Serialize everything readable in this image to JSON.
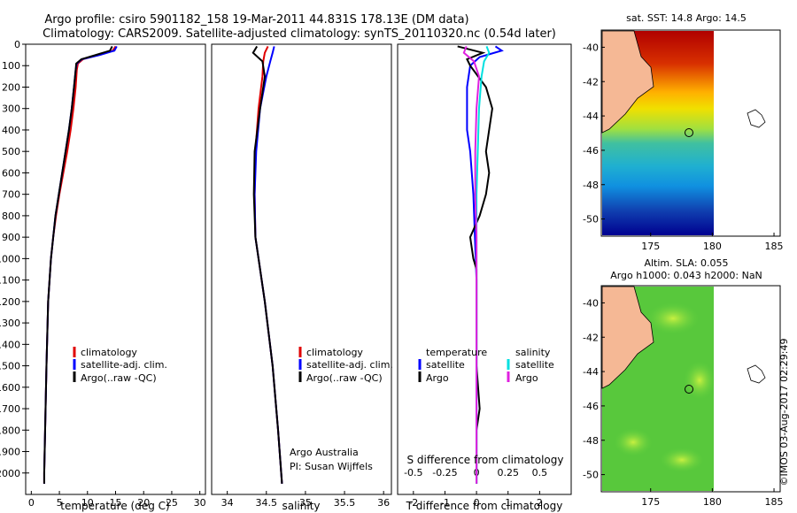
{
  "header": {
    "title_line1": "Argo profile: csiro 5901182_158 19-Mar-2011 44.831S 178.13E (DM data)",
    "title_line2": "Climatology: CARS2009. Satellite-adjusted climatology: synTS_20110320.nc (0.54d later)"
  },
  "footer": {
    "watermark": "©IMOS 03-Aug-2017 02:29:49",
    "org": "Argo Australia",
    "pi": "PI: Susan Wijffels"
  },
  "colors": {
    "climatology": "#e00000",
    "satellite": "#0000ff",
    "argo": "#000000",
    "salinity_satellite": "#00e0e0",
    "salinity_argo": "#e020e0",
    "land": "#f5b895"
  },
  "chart_data": [
    {
      "type": "line",
      "xlabel": "temperature (deg C)",
      "ylabel": "",
      "xlim": [
        -1,
        31
      ],
      "ylim": [
        2100,
        0
      ],
      "x_ticks": [
        0,
        5,
        10,
        15,
        20,
        25,
        30
      ],
      "y_ticks": [
        0,
        100,
        200,
        300,
        400,
        500,
        600,
        700,
        800,
        900,
        1000,
        1100,
        1200,
        1300,
        1400,
        1500,
        1600,
        1700,
        1800,
        1900,
        2000
      ],
      "legend": [
        "climatology",
        "satellite-adj. clim.",
        "Argo(..raw -QC)"
      ],
      "series": [
        {
          "name": "climatology",
          "depth": [
            10,
            30,
            50,
            70,
            90,
            120,
            200,
            300,
            400,
            500,
            600,
            700,
            800,
            900,
            1000,
            1200,
            1500,
            2000,
            2050
          ],
          "values": [
            15.0,
            14.5,
            12.0,
            9.2,
            8.3,
            8.1,
            7.9,
            7.5,
            7.0,
            6.4,
            5.7,
            5.0,
            4.4,
            3.9,
            3.5,
            3.0,
            2.7,
            2.3,
            2.3
          ]
        },
        {
          "name": "satellite-adj. clim.",
          "depth": [
            10,
            30,
            50,
            70,
            90,
            120,
            200,
            300,
            400,
            500,
            600,
            700,
            800,
            900,
            1000,
            1200,
            1500,
            2000,
            2050
          ],
          "values": [
            15.2,
            14.8,
            12.2,
            9.0,
            8.1,
            7.9,
            7.6,
            7.2,
            6.7,
            6.1,
            5.5,
            4.9,
            4.3,
            3.9,
            3.5,
            3.0,
            2.7,
            2.3,
            2.3
          ]
        },
        {
          "name": "Argo(..raw -QC)",
          "depth": [
            10,
            30,
            50,
            70,
            90,
            120,
            200,
            300,
            400,
            500,
            600,
            700,
            800,
            900,
            1000,
            1200,
            1500,
            2000,
            2050
          ],
          "values": [
            14.4,
            14.0,
            11.5,
            8.9,
            8.0,
            7.9,
            7.6,
            7.2,
            6.7,
            6.1,
            5.5,
            4.9,
            4.3,
            3.9,
            3.5,
            3.0,
            2.7,
            2.3,
            2.3
          ]
        }
      ]
    },
    {
      "type": "line",
      "xlabel": "salinity",
      "xlim": [
        33.8,
        36.1
      ],
      "ylim": [
        2100,
        0
      ],
      "x_ticks": [
        34,
        34.5,
        35,
        35.5,
        36
      ],
      "legend": [
        "climatology",
        "satellite-adj. clim.",
        "Argo(..raw -QC)"
      ],
      "series": [
        {
          "name": "climatology",
          "depth": [
            10,
            40,
            80,
            150,
            300,
            500,
            700,
            900,
            1000,
            1200,
            1500,
            1800,
            2050
          ],
          "values": [
            34.52,
            34.48,
            34.46,
            34.45,
            34.4,
            34.36,
            34.35,
            34.36,
            34.4,
            34.48,
            34.58,
            34.65,
            34.7
          ]
        },
        {
          "name": "satellite-adj. clim.",
          "depth": [
            10,
            40,
            80,
            150,
            300,
            500,
            700,
            900,
            1000,
            1200,
            1500,
            1800,
            2050
          ],
          "values": [
            34.6,
            34.58,
            34.55,
            34.5,
            34.42,
            34.37,
            34.35,
            34.36,
            34.4,
            34.48,
            34.58,
            34.65,
            34.7
          ]
        },
        {
          "name": "Argo(..raw -QC)",
          "depth": [
            10,
            40,
            80,
            150,
            300,
            500,
            700,
            900,
            1000,
            1200,
            1500,
            1800,
            2050
          ],
          "values": [
            34.38,
            34.33,
            34.45,
            34.48,
            34.42,
            34.35,
            34.34,
            34.36,
            34.4,
            34.48,
            34.58,
            34.65,
            34.7
          ]
        }
      ]
    },
    {
      "type": "line",
      "xlabel": "T difference from climatology",
      "xlabel_top": "S difference from climatology",
      "xlim": [
        -2.5,
        3.0
      ],
      "ylim": [
        2100,
        0
      ],
      "x_ticks": [
        -2,
        -1,
        0,
        1,
        2
      ],
      "x_ticks_top": [
        "-0.5",
        "-0.25",
        "0",
        "0.25",
        "0.5"
      ],
      "legend_titles": [
        "temperature",
        "salinity"
      ],
      "legend": [
        "satellite",
        "Argo",
        "satellite",
        "Argo"
      ],
      "series": [
        {
          "name": "satellite",
          "group": "temperature",
          "depth": [
            10,
            30,
            60,
            100,
            200,
            300,
            400,
            500,
            700,
            900,
            1100,
            1500,
            2050
          ],
          "values": [
            0.6,
            0.8,
            0.1,
            -0.2,
            -0.3,
            -0.3,
            -0.3,
            -0.2,
            -0.1,
            -0.05,
            0.0,
            0.0,
            0.0
          ]
        },
        {
          "name": "Argo",
          "group": "temperature",
          "depth": [
            10,
            40,
            70,
            100,
            200,
            300,
            400,
            500,
            600,
            700,
            800,
            900,
            1000,
            1050,
            1100,
            1500,
            1700,
            1800,
            2050
          ],
          "values": [
            -0.6,
            0.2,
            -0.3,
            -0.2,
            0.3,
            0.5,
            0.4,
            0.3,
            0.4,
            0.3,
            0.1,
            -0.2,
            -0.1,
            0.0,
            0.0,
            0.0,
            0.1,
            0.0,
            0.0
          ]
        },
        {
          "name": "satellite",
          "group": "salinity",
          "depth": [
            10,
            40,
            80,
            150,
            300,
            500,
            700,
            900,
            1100,
            1500,
            2050
          ],
          "values": [
            0.08,
            0.1,
            0.06,
            0.04,
            0.02,
            0.01,
            0.0,
            0.0,
            0.0,
            0.0,
            0.0
          ]
        },
        {
          "name": "Argo",
          "group": "salinity",
          "depth": [
            10,
            40,
            80,
            150,
            300,
            500,
            700,
            900,
            1100,
            1500,
            2050
          ],
          "values": [
            -0.08,
            -0.1,
            -0.02,
            0.02,
            0.0,
            -0.01,
            -0.01,
            0.0,
            0.0,
            0.0,
            0.0
          ]
        }
      ]
    },
    {
      "type": "heatmap",
      "title": "sat. SST: 14.8 Argo: 14.5",
      "xlim": [
        171,
        185.5
      ],
      "ylim": [
        -51,
        -39
      ],
      "x_ticks": [
        175,
        180,
        185
      ],
      "y_ticks": [
        -40,
        -42,
        -44,
        -46,
        -48,
        -50
      ],
      "argo_position": [
        178.13,
        -44.831
      ]
    },
    {
      "type": "heatmap",
      "title_line1": "Altim. SLA: 0.055",
      "title_line2": "Argo h1000: 0.043 h2000: NaN",
      "xlim": [
        171,
        185.5
      ],
      "ylim": [
        -51,
        -39
      ],
      "x_ticks": [
        175,
        180,
        185
      ],
      "y_ticks": [
        -40,
        -42,
        -44,
        -46,
        -48,
        -50
      ],
      "argo_position": [
        178.13,
        -44.831
      ]
    }
  ]
}
